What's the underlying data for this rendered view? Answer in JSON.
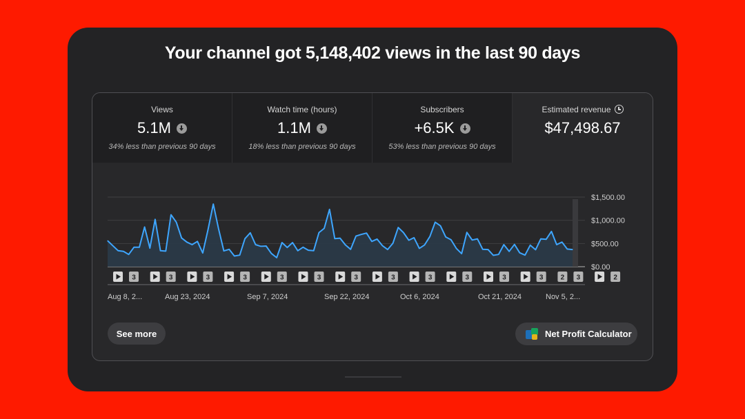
{
  "headline": "Your channel got 5,148,402 views in the last 90 days",
  "tabs": [
    {
      "title": "Views",
      "value": "5.1M",
      "note": "34% less than previous 90 days",
      "trend_icon": "arrow-down-circle-icon"
    },
    {
      "title": "Watch time (hours)",
      "value": "1.1M",
      "note": "18% less than previous 90 days",
      "trend_icon": "arrow-down-circle-icon"
    },
    {
      "title": "Subscribers",
      "value": "+6.5K",
      "note": "53% less than previous 90 days",
      "trend_icon": "arrow-down-circle-icon"
    },
    {
      "title": "Estimated revenue",
      "value": "$47,498.67",
      "info_icon": "clock-icon"
    }
  ],
  "chart_data": {
    "type": "area",
    "selected_metric": "Estimated revenue",
    "y_ticks": [
      "$1,500.00",
      "$1,000.00",
      "$500.00",
      "$0.00"
    ],
    "ylim": [
      0,
      1500
    ],
    "x_tick_labels": [
      "Aug 8, 2...",
      "Aug 23, 2024",
      "Sep 7, 2024",
      "Sep 22, 2024",
      "Oct 6, 2024",
      "Oct 21, 2024",
      "Nov 5, 2..."
    ],
    "line_color": "#3ea6ff",
    "area_color": "#2a3a48",
    "values": [
      560,
      450,
      345,
      330,
      265,
      420,
      420,
      855,
      400,
      1020,
      345,
      335,
      1120,
      960,
      620,
      530,
      475,
      545,
      295,
      795,
      1350,
      820,
      340,
      375,
      230,
      250,
      605,
      730,
      475,
      440,
      445,
      285,
      195,
      520,
      415,
      520,
      345,
      420,
      355,
      345,
      735,
      825,
      1235,
      605,
      615,
      470,
      375,
      660,
      695,
      725,
      545,
      595,
      455,
      370,
      505,
      845,
      735,
      570,
      625,
      395,
      470,
      650,
      960,
      880,
      640,
      580,
      395,
      280,
      740,
      575,
      600,
      375,
      370,
      245,
      265,
      475,
      330,
      480,
      300,
      250,
      465,
      365,
      600,
      590,
      760,
      475,
      530,
      380,
      370
    ],
    "upload_markers": [
      {
        "type": "video",
        "label": ""
      },
      {
        "type": "count",
        "label": "3"
      },
      {
        "type": "video",
        "label": ""
      },
      {
        "type": "count",
        "label": "3"
      },
      {
        "type": "video",
        "label": ""
      },
      {
        "type": "count",
        "label": "3"
      },
      {
        "type": "video",
        "label": ""
      },
      {
        "type": "count",
        "label": "3"
      },
      {
        "type": "video",
        "label": ""
      },
      {
        "type": "count",
        "label": "3"
      },
      {
        "type": "video",
        "label": ""
      },
      {
        "type": "count",
        "label": "3"
      },
      {
        "type": "video",
        "label": ""
      },
      {
        "type": "count",
        "label": "3"
      },
      {
        "type": "video",
        "label": ""
      },
      {
        "type": "count",
        "label": "3"
      },
      {
        "type": "video",
        "label": ""
      },
      {
        "type": "count",
        "label": "3"
      },
      {
        "type": "video",
        "label": ""
      },
      {
        "type": "count",
        "label": "3"
      },
      {
        "type": "video",
        "label": ""
      },
      {
        "type": "count",
        "label": "3"
      },
      {
        "type": "video",
        "label": ""
      },
      {
        "type": "count",
        "label": "3"
      },
      {
        "type": "count",
        "label": "2"
      },
      {
        "type": "count",
        "label": "3"
      },
      {
        "type": "video",
        "label": ""
      },
      {
        "type": "count",
        "label": "2"
      }
    ]
  },
  "buttons": {
    "see_more": "See more",
    "net_profit": "Net Profit Calculator",
    "net_profit_icon": "calculator-app-icon"
  }
}
